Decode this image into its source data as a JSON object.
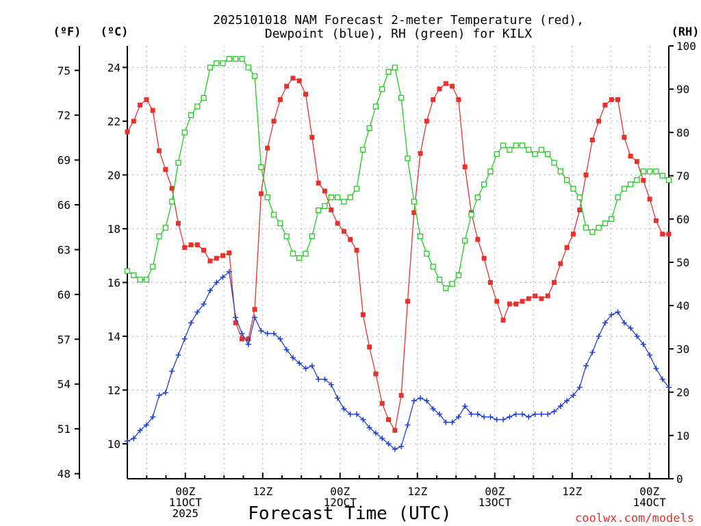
{
  "chart_data": {
    "type": "line",
    "title": [
      "2025101018 NAM Forecast 2-meter Temperature (red),",
      "Dewpoint (blue), RH (green) for KILX"
    ],
    "xlabel": "Forecast Time (UTC)",
    "credit": "coolwx.com/models",
    "units": {
      "fahrenheit": "(ºF)",
      "celsius": "(ºC)",
      "rh": "(RH)"
    },
    "x_range_hours": [
      -9,
      75
    ],
    "x_ticks": [
      {
        "hour": 0,
        "labels": [
          "00Z",
          "11OCT",
          "2025"
        ]
      },
      {
        "hour": 12,
        "labels": [
          "12Z"
        ]
      },
      {
        "hour": 24,
        "labels": [
          "00Z",
          "12OCT"
        ]
      },
      {
        "hour": 36,
        "labels": [
          "12Z"
        ]
      },
      {
        "hour": 48,
        "labels": [
          "00Z",
          "13OCT"
        ]
      },
      {
        "hour": 60,
        "labels": [
          "12Z"
        ]
      },
      {
        "hour": 72,
        "labels": [
          "00Z",
          "14OCT"
        ]
      }
    ],
    "celsius_range": [
      8.7,
      24.8
    ],
    "celsius_ticks": [
      "10",
      "12",
      "14",
      "16",
      "18",
      "20",
      "22",
      "24"
    ],
    "fahrenheit_ticks": [
      "48",
      "51",
      "54",
      "57",
      "60",
      "63",
      "66",
      "69",
      "72",
      "75"
    ],
    "rh_range": [
      0,
      100
    ],
    "rh_ticks": [
      "0",
      "10",
      "20",
      "30",
      "40",
      "50",
      "60",
      "70",
      "80",
      "90",
      "100"
    ],
    "series": [
      {
        "name": "2-meter Temperature",
        "unit": "C",
        "color": "#e8302c",
        "marker": "filled-square",
        "values": [
          21.6,
          22.0,
          22.6,
          22.8,
          22.4,
          20.9,
          20.2,
          19.5,
          18.2,
          17.3,
          17.4,
          17.4,
          17.2,
          16.8,
          16.9,
          17.0,
          17.1,
          14.5,
          13.9,
          13.9,
          15.0,
          19.3,
          21.0,
          22.0,
          22.8,
          23.3,
          23.6,
          23.5,
          23.0,
          21.4,
          19.7,
          19.4,
          18.7,
          18.2,
          17.9,
          17.6,
          17.2,
          14.8,
          13.6,
          12.6,
          11.5,
          10.9,
          10.5,
          11.8,
          15.3,
          18.6,
          20.8,
          22.0,
          22.8,
          23.2,
          23.4,
          23.3,
          22.8,
          20.3,
          18.6,
          17.6,
          16.9,
          16.0,
          15.3,
          14.6,
          15.2,
          15.2,
          15.3,
          15.4,
          15.5,
          15.4,
          15.5,
          16.0,
          16.7,
          17.3,
          17.8,
          18.7,
          20.0,
          21.3,
          22.0,
          22.6,
          22.8,
          22.8,
          21.4,
          20.7,
          20.5,
          19.8,
          19.1,
          18.3,
          17.8,
          17.8
        ]
      },
      {
        "name": "2-meter Dewpoint",
        "unit": "C",
        "color": "#1f3fd6",
        "marker": "plus",
        "values": [
          10.1,
          10.2,
          10.5,
          10.7,
          11.0,
          11.8,
          11.9,
          12.7,
          13.3,
          13.9,
          14.5,
          14.9,
          15.2,
          15.7,
          16.0,
          16.2,
          16.4,
          14.7,
          14.1,
          13.7,
          14.7,
          14.2,
          14.1,
          14.1,
          13.9,
          13.5,
          13.2,
          13.0,
          12.8,
          12.9,
          12.4,
          12.4,
          12.2,
          11.7,
          11.3,
          11.1,
          11.1,
          10.9,
          10.6,
          10.4,
          10.2,
          10.0,
          9.8,
          9.9,
          10.7,
          11.6,
          11.7,
          11.6,
          11.3,
          11.1,
          10.8,
          10.8,
          11.0,
          11.4,
          11.1,
          11.1,
          11.0,
          11.0,
          10.9,
          10.9,
          11.0,
          11.1,
          11.1,
          11.0,
          11.1,
          11.1,
          11.1,
          11.2,
          11.4,
          11.6,
          11.8,
          12.1,
          12.9,
          13.4,
          14.0,
          14.5,
          14.8,
          14.9,
          14.5,
          14.3,
          14.0,
          13.7,
          13.3,
          12.8,
          12.4,
          12.1
        ]
      },
      {
        "name": "Relative Humidity",
        "unit": "%",
        "color": "#1ecc1e",
        "marker": "open-square",
        "values": [
          48,
          47,
          46,
          46,
          49,
          56,
          58,
          64,
          73,
          80,
          84,
          86,
          88,
          95,
          96,
          96,
          97,
          97,
          97,
          95,
          93,
          72,
          65,
          61,
          59,
          56,
          52,
          51,
          52,
          56,
          62,
          63,
          65,
          65,
          64,
          65,
          67,
          76,
          81,
          86,
          90,
          94,
          95,
          88,
          74,
          64,
          56,
          52,
          49,
          46,
          44,
          45,
          47,
          55,
          61,
          65,
          68,
          71,
          75,
          77,
          76,
          77,
          77,
          76,
          75,
          76,
          75,
          73,
          71,
          69,
          67,
          65,
          58,
          57,
          58,
          59,
          60,
          65,
          67,
          68,
          69,
          71,
          71,
          71,
          70,
          69
        ]
      }
    ]
  }
}
